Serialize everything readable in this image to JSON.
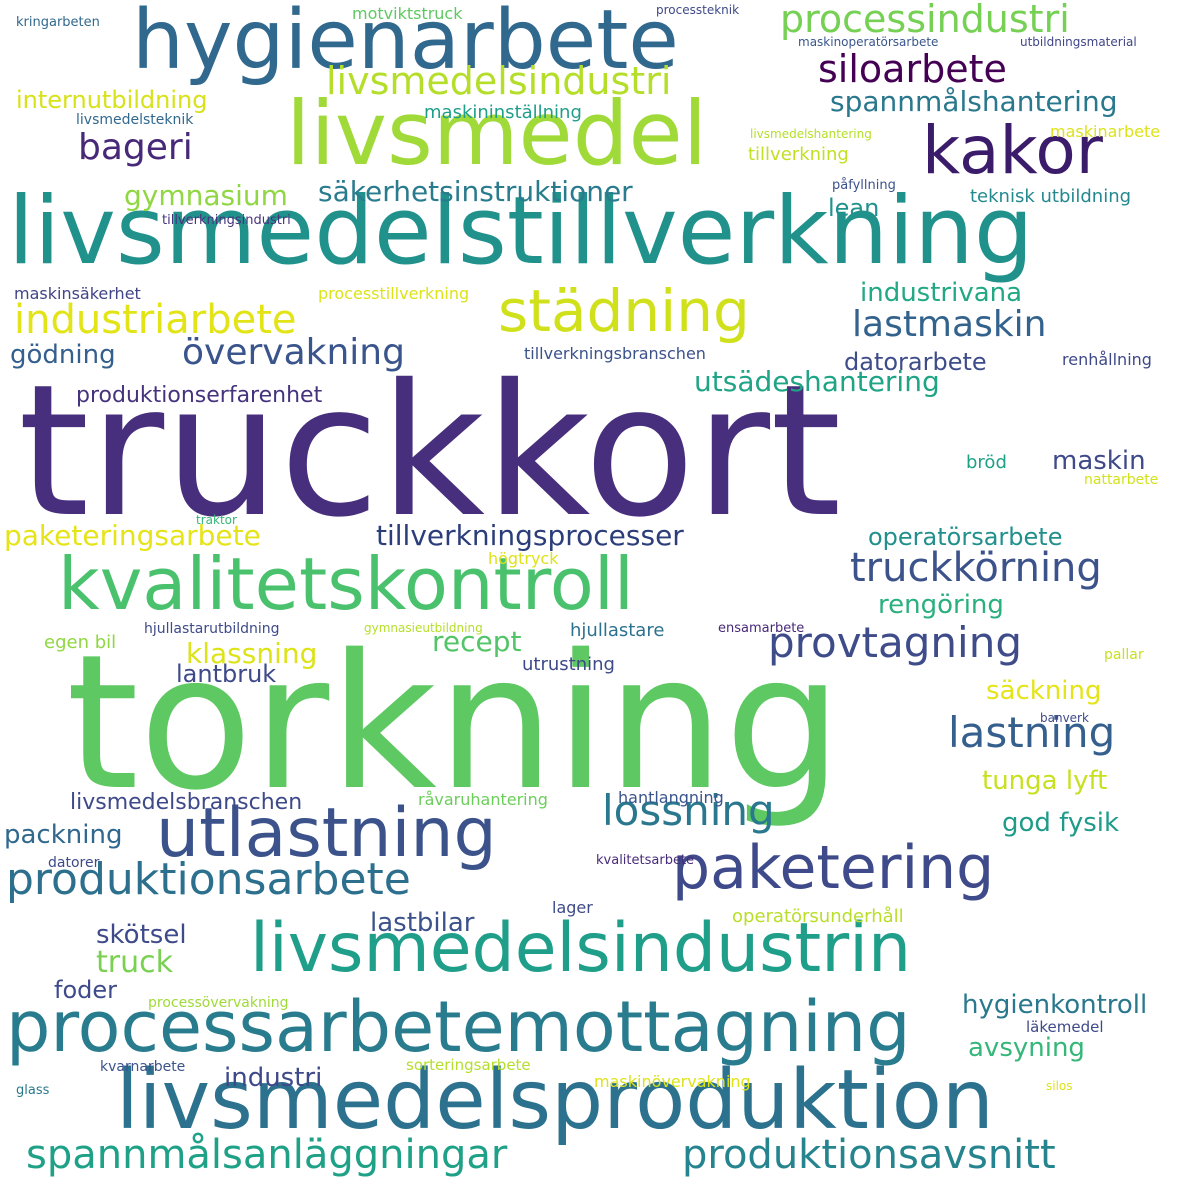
{
  "words": [
    {
      "text": "truckkort",
      "color": "#472f7d"
    },
    {
      "text": "torkning",
      "color": "#5ec962"
    },
    {
      "text": "livsmedelstillverkning",
      "color": "#21918c"
    },
    {
      "text": "livsmedelsproduktion",
      "color": "#2c728e"
    },
    {
      "text": "livsmedel",
      "color": "#a0da39"
    },
    {
      "text": "hygienarbete",
      "color": "#31688e"
    },
    {
      "text": "kvalitetskontroll",
      "color": "#4ac16d"
    },
    {
      "text": "livsmedelsindustrin",
      "color": "#1f9e89"
    },
    {
      "text": "processarbetemottagning",
      "color": "#287c8e"
    },
    {
      "text": "kakor",
      "color": "#3b1c6b"
    },
    {
      "text": "utlastning",
      "color": "#3b528b"
    },
    {
      "text": "paketering",
      "color": "#3e4a89"
    },
    {
      "text": "städning",
      "color": "#d0e11c"
    },
    {
      "text": "produktionsarbete",
      "color": "#2d708e"
    },
    {
      "text": "spannmålsanläggningar",
      "color": "#1fa187"
    },
    {
      "text": "produktionsavsnitt",
      "color": "#25848e"
    },
    {
      "text": "provtagning",
      "color": "#3e4c8a"
    },
    {
      "text": "lastning",
      "color": "#355f8d"
    },
    {
      "text": "lossning",
      "color": "#2a788e"
    },
    {
      "text": "processindustri",
      "color": "#75d054"
    },
    {
      "text": "livsmedelsindustri",
      "color": "#b5de2b"
    },
    {
      "text": "industriarbete",
      "color": "#e2e418"
    },
    {
      "text": "truckkörning",
      "color": "#3b528b"
    },
    {
      "text": "siloarbete",
      "color": "#440154"
    },
    {
      "text": "lastmaskin",
      "color": "#33638d"
    },
    {
      "text": "övervakning",
      "color": "#3a548c"
    },
    {
      "text": "bageri",
      "color": "#482878"
    },
    {
      "text": "säkerhetsinstruktioner",
      "color": "#297b8e"
    },
    {
      "text": "spannmålshantering",
      "color": "#2a788e"
    },
    {
      "text": "paketeringsarbete",
      "color": "#e5e419"
    },
    {
      "text": "tillverkningsprocesser",
      "color": "#2c3e7a"
    },
    {
      "text": "gymnasium",
      "color": "#90d743"
    },
    {
      "text": "utsädeshantering",
      "color": "#20a486"
    },
    {
      "text": "industrivana",
      "color": "#22a884"
    },
    {
      "text": "operatörsarbete",
      "color": "#21908d"
    },
    {
      "text": "internutbildning",
      "color": "#d8e219"
    },
    {
      "text": "livsmedelsbranschen",
      "color": "#3e4989"
    },
    {
      "text": "produktionserfarenhet",
      "color": "#46337e"
    },
    {
      "text": "hygienkontroll",
      "color": "#2a788e"
    },
    {
      "text": "god fysik",
      "color": "#1e9b8a"
    },
    {
      "text": "rengöring",
      "color": "#2ab07f"
    },
    {
      "text": "säckning",
      "color": "#e5e419"
    },
    {
      "text": "klassning",
      "color": "#dde318"
    },
    {
      "text": "recept",
      "color": "#52c569"
    },
    {
      "text": "maskin",
      "color": "#3e4a89"
    },
    {
      "text": "gödning",
      "color": "#355f8d"
    },
    {
      "text": "datorarbete",
      "color": "#3e4c8a"
    },
    {
      "text": "lean",
      "color": "#21918c"
    },
    {
      "text": "lastbilar",
      "color": "#3b528b"
    },
    {
      "text": "skötsel",
      "color": "#3e4a89"
    },
    {
      "text": "industri",
      "color": "#3e4989"
    },
    {
      "text": "avsyning",
      "color": "#35b779"
    },
    {
      "text": "tunga lyft",
      "color": "#c8e020"
    },
    {
      "text": "packning",
      "color": "#31688e"
    },
    {
      "text": "lantbruk",
      "color": "#3e4989"
    },
    {
      "text": "truck",
      "color": "#7ad151"
    },
    {
      "text": "foder",
      "color": "#3e4a89"
    },
    {
      "text": "motviktstruck",
      "color": "#5ec962"
    },
    {
      "text": "maskininställning",
      "color": "#1f9e89"
    },
    {
      "text": "tillverkning",
      "color": "#c2df23"
    },
    {
      "text": "teknisk utbildning",
      "color": "#23898e"
    },
    {
      "text": "maskinsäkerhet",
      "color": "#414487"
    },
    {
      "text": "processtillverkning",
      "color": "#dde318"
    },
    {
      "text": "tillverkningsbranschen",
      "color": "#3b528b"
    },
    {
      "text": "renhållning",
      "color": "#3e4989"
    },
    {
      "text": "råvaruhantering",
      "color": "#6ccd5a"
    },
    {
      "text": "hantlangning",
      "color": "#3a548c"
    },
    {
      "text": "utrustning",
      "color": "#3e4989"
    },
    {
      "text": "hjullastare",
      "color": "#2c728e"
    },
    {
      "text": "operatörsunderhåll",
      "color": "#b8de29"
    },
    {
      "text": "lager",
      "color": "#3e4a89"
    },
    {
      "text": "bröd",
      "color": "#1fa187"
    },
    {
      "text": "högtryck",
      "color": "#dde318"
    },
    {
      "text": "egen bil",
      "color": "#90d743"
    },
    {
      "text": "kringarbeten",
      "color": "#31688e"
    },
    {
      "text": "processteknik",
      "color": "#3e4989"
    },
    {
      "text": "maskinoperatörsarbete",
      "color": "#39568c"
    },
    {
      "text": "utbildningsmaterial",
      "color": "#404688"
    },
    {
      "text": "livsmedelsteknik",
      "color": "#31688e"
    },
    {
      "text": "livsmedelshantering",
      "color": "#b5de2b"
    },
    {
      "text": "maskinarbete",
      "color": "#dde318"
    },
    {
      "text": "påfyllning",
      "color": "#3b528b"
    },
    {
      "text": "tillverkningsindustri",
      "color": "#46337e"
    },
    {
      "text": "nattarbete",
      "color": "#d2e21b"
    },
    {
      "text": "traktor",
      "color": "#35b779"
    },
    {
      "text": "hjullastarutbildning",
      "color": "#3e4a89"
    },
    {
      "text": "gymnasieutbildning",
      "color": "#b5de2b"
    },
    {
      "text": "ensamarbete",
      "color": "#482878"
    },
    {
      "text": "pallar",
      "color": "#c8e020"
    },
    {
      "text": "banverk",
      "color": "#3e4a89"
    },
    {
      "text": "datorer",
      "color": "#3e4a89"
    },
    {
      "text": "kvalitetsarbete",
      "color": "#472c7a"
    },
    {
      "text": "processövervakning",
      "color": "#a0da39"
    },
    {
      "text": "läkemedel",
      "color": "#3e4a89"
    },
    {
      "text": "kvarnarbete",
      "color": "#3b528b"
    },
    {
      "text": "sorteringsarbete",
      "color": "#b5de2b"
    },
    {
      "text": "maskinövervakning",
      "color": "#dde318"
    },
    {
      "text": "silos",
      "color": "#dde318"
    },
    {
      "text": "glass",
      "color": "#2a788e"
    }
  ]
}
